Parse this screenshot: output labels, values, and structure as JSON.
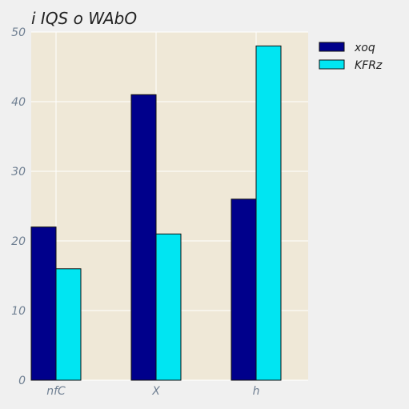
{
  "chart_data": {
    "type": "bar",
    "title": "i  IQS o WAbO",
    "xlabel": "",
    "ylabel": "",
    "categories": [
      "nfC",
      "X",
      "h"
    ],
    "series": [
      {
        "name": "xoq",
        "values": [
          22,
          41,
          26
        ],
        "color": "#00008b"
      },
      {
        "name": "KFRz",
        "values": [
          16,
          21,
          48
        ],
        "color": "#00e5f2"
      }
    ],
    "ylim": [
      0,
      50
    ],
    "yticks": [
      0,
      10,
      20,
      30,
      40,
      50
    ],
    "grid": true,
    "legend": "top-right"
  }
}
